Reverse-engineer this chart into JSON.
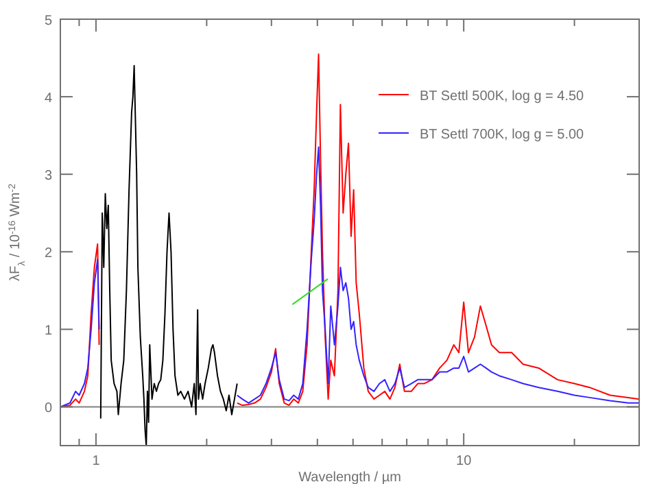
{
  "chart_data": {
    "type": "line",
    "xlabel": "Wavelength / µm",
    "ylabel": "λF$_{λ}$ / 10$^{-16}$ Wm$^{-2}$",
    "log": "x",
    "xlim": [
      0.8,
      30
    ],
    "ylim": [
      -0.5,
      5
    ],
    "xticks": [
      {
        "value": 0.9,
        "label": null
      },
      1,
      {
        "value": 2,
        "label": null
      },
      {
        "value": 3,
        "label": null
      },
      {
        "value": 4,
        "label": null
      },
      {
        "value": 5,
        "label": null
      },
      {
        "value": 6,
        "label": null
      },
      {
        "value": 7,
        "label": null
      },
      {
        "value": 8,
        "label": null
      },
      {
        "value": 9,
        "label": null
      },
      10,
      {
        "value": 20,
        "label": null
      }
    ],
    "yticks": [
      0,
      1,
      2,
      3,
      4,
      5
    ],
    "grid": false,
    "legend": "top right",
    "line_style": "solid",
    "marker": "none",
    "ref_lines": [
      {
        "axis": "y",
        "value": 0,
        "color": "#808080"
      }
    ],
    "series": [
      {
        "name": "BT Settl 500K, log g = 4.50",
        "color": "#ff0000",
        "x": [
          0.8,
          0.85,
          0.88,
          0.9,
          0.93,
          0.95,
          0.97,
          0.99,
          1.01,
          1.02,
          1.5,
          2.42,
          2.5,
          2.6,
          2.7,
          2.8,
          2.9,
          3.0,
          3.08,
          3.15,
          3.25,
          3.35,
          3.45,
          3.55,
          3.65,
          3.75,
          3.85,
          3.92,
          3.98,
          4.03,
          4.08,
          4.13,
          4.2,
          4.28,
          4.35,
          4.45,
          4.55,
          4.62,
          4.7,
          4.78,
          4.86,
          4.94,
          5.02,
          5.1,
          5.2,
          5.35,
          5.5,
          5.7,
          5.9,
          6.1,
          6.3,
          6.5,
          6.7,
          6.9,
          7.2,
          7.5,
          7.8,
          8.2,
          8.6,
          9.0,
          9.4,
          9.7,
          10.0,
          10.3,
          10.7,
          11.1,
          11.5,
          11.9,
          12.5,
          13.5,
          14.5,
          16,
          18,
          20,
          22,
          25,
          28,
          30
        ],
        "values": [
          0.0,
          0.02,
          0.1,
          0.05,
          0.2,
          0.4,
          1.2,
          1.8,
          2.1,
          0.8,
          null,
          0.05,
          0.02,
          0.03,
          0.05,
          0.1,
          0.25,
          0.45,
          0.75,
          0.3,
          0.05,
          0.02,
          0.1,
          0.05,
          0.2,
          0.8,
          2.0,
          2.8,
          3.8,
          4.55,
          3.2,
          2.0,
          0.9,
          0.1,
          0.6,
          0.4,
          1.5,
          3.9,
          2.5,
          3.0,
          3.4,
          2.2,
          2.8,
          1.6,
          1.2,
          0.5,
          0.2,
          0.1,
          0.15,
          0.2,
          0.1,
          0.25,
          0.55,
          0.2,
          0.2,
          0.3,
          0.3,
          0.35,
          0.5,
          0.6,
          0.8,
          0.7,
          1.35,
          0.7,
          0.9,
          1.3,
          1.05,
          0.8,
          0.7,
          0.7,
          0.55,
          0.5,
          0.35,
          0.3,
          0.25,
          0.15,
          0.12,
          0.1
        ]
      },
      {
        "name": "BT Settl 700K, log g = 5.00",
        "color": "#3322ff",
        "x": [
          0.8,
          0.85,
          0.88,
          0.9,
          0.93,
          0.95,
          0.97,
          0.99,
          1.01,
          1.02,
          1.5,
          2.42,
          2.5,
          2.6,
          2.7,
          2.8,
          2.9,
          3.0,
          3.08,
          3.15,
          3.25,
          3.35,
          3.45,
          3.55,
          3.65,
          3.75,
          3.85,
          3.92,
          3.98,
          4.03,
          4.08,
          4.13,
          4.2,
          4.28,
          4.35,
          4.45,
          4.55,
          4.62,
          4.7,
          4.78,
          4.86,
          4.94,
          5.02,
          5.1,
          5.2,
          5.35,
          5.5,
          5.7,
          5.9,
          6.1,
          6.3,
          6.5,
          6.7,
          6.9,
          7.2,
          7.5,
          7.8,
          8.2,
          8.6,
          9.0,
          9.4,
          9.7,
          10.0,
          10.3,
          10.7,
          11.1,
          11.5,
          11.9,
          12.5,
          13.5,
          14.5,
          16,
          18,
          20,
          22,
          25,
          28,
          30
        ],
        "values": [
          0.0,
          0.05,
          0.2,
          0.15,
          0.3,
          0.5,
          1.0,
          1.6,
          1.9,
          1.0,
          null,
          0.15,
          0.1,
          0.05,
          0.1,
          0.15,
          0.3,
          0.5,
          0.7,
          0.35,
          0.1,
          0.08,
          0.15,
          0.1,
          0.3,
          1.0,
          1.9,
          2.4,
          3.0,
          3.35,
          2.6,
          1.5,
          1.0,
          0.3,
          1.3,
          0.8,
          1.3,
          1.8,
          1.5,
          1.6,
          1.4,
          1.0,
          1.1,
          0.8,
          0.6,
          0.4,
          0.25,
          0.2,
          0.3,
          0.35,
          0.2,
          0.3,
          0.5,
          0.25,
          0.3,
          0.35,
          0.35,
          0.35,
          0.45,
          0.45,
          0.5,
          0.5,
          0.65,
          0.45,
          0.5,
          0.55,
          0.5,
          0.45,
          0.4,
          0.35,
          0.3,
          0.25,
          0.2,
          0.15,
          0.12,
          0.08,
          0.05,
          0.05
        ]
      },
      {
        "color": "#000000",
        "x": [
          1.03,
          1.04,
          1.05,
          1.06,
          1.07,
          1.08,
          1.09,
          1.1,
          1.12,
          1.14,
          1.15,
          1.17,
          1.19,
          1.21,
          1.23,
          1.25,
          1.26,
          1.27,
          1.28,
          1.29,
          1.3,
          1.32,
          1.34,
          1.35,
          1.36,
          1.37,
          1.38,
          1.39,
          1.4,
          1.42,
          1.44,
          1.46,
          1.48,
          1.5,
          1.52,
          1.54,
          1.56,
          1.58,
          1.6,
          1.62,
          1.64,
          1.67,
          1.7,
          1.74,
          1.78,
          1.82,
          1.85,
          1.87,
          1.89,
          1.9,
          1.92,
          1.95,
          1.98,
          2.02,
          2.06,
          2.08,
          2.1,
          2.14,
          2.18,
          2.22,
          2.26,
          2.3,
          2.34,
          2.38,
          2.42
        ],
        "values": [
          -0.15,
          2.5,
          1.8,
          2.75,
          2.3,
          2.6,
          1.5,
          0.6,
          0.3,
          0.2,
          -0.1,
          0.3,
          0.6,
          1.5,
          2.8,
          3.8,
          4.0,
          4.4,
          3.7,
          3.0,
          1.8,
          0.9,
          0.4,
          0.1,
          -0.3,
          -0.5,
          0.2,
          -0.2,
          0.8,
          0.1,
          0.3,
          0.2,
          0.3,
          0.35,
          0.6,
          1.2,
          2.0,
          2.5,
          2.0,
          1.0,
          0.4,
          0.15,
          0.2,
          0.1,
          0.2,
          0.0,
          0.3,
          -0.1,
          1.25,
          0.1,
          0.3,
          0.1,
          0.3,
          0.5,
          0.75,
          0.8,
          0.7,
          0.4,
          0.2,
          0.1,
          -0.05,
          0.15,
          -0.1,
          0.1,
          0.3
        ]
      },
      {
        "color": "#33dd22",
        "x": [
          3.42,
          4.27
        ],
        "values": [
          1.32,
          1.65
        ]
      }
    ]
  }
}
